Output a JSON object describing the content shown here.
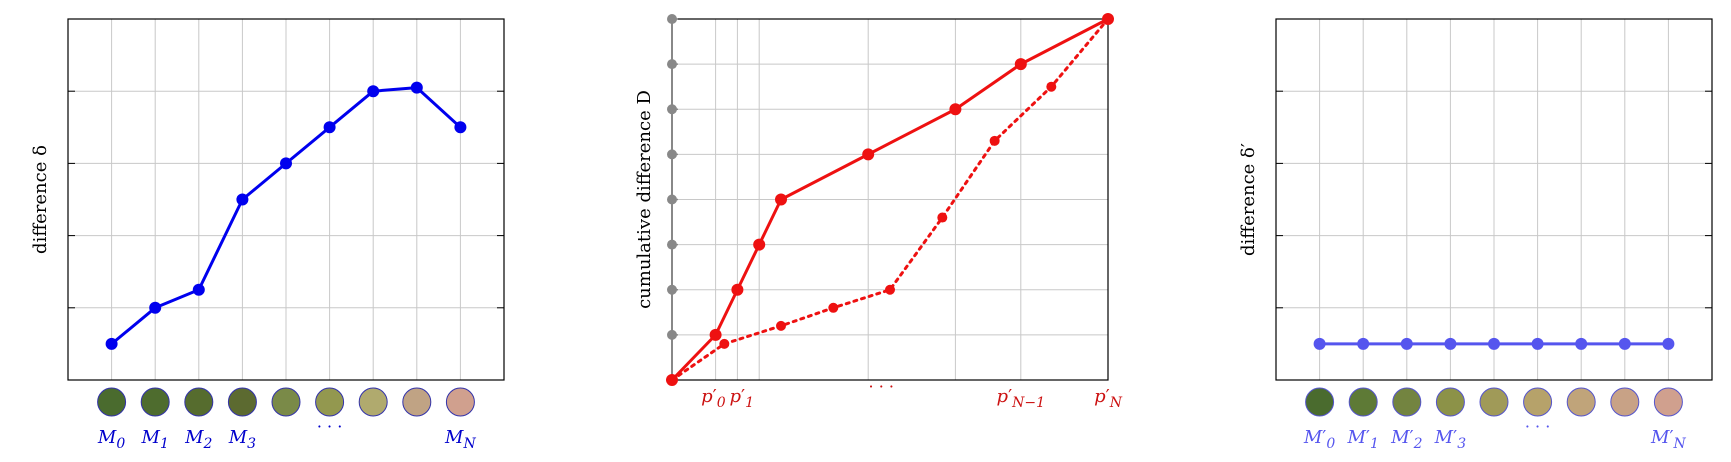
{
  "chart_data": [
    {
      "type": "line",
      "ylabel": "difference δ",
      "series": [
        {
          "name": "δ",
          "color": "#0000ee",
          "x": [
            0,
            1,
            2,
            3,
            4,
            5,
            6,
            7,
            8
          ],
          "values": [
            1.0,
            2.0,
            2.5,
            5.0,
            6.0,
            7.0,
            8.0,
            8.1,
            7.0
          ]
        }
      ],
      "xlim": [
        -1,
        9
      ],
      "ylim": [
        0,
        10
      ],
      "grid": true,
      "markers": {
        "colors": [
          "#4a6b2e",
          "#4e6c2e",
          "#566c2e",
          "#5c6a30",
          "#7a8a48",
          "#93984f",
          "#b0aa6e",
          "#c0a384",
          "#d0a08e"
        ],
        "labels": [
          {
            "base": "M",
            "sub": "0"
          },
          {
            "base": "M",
            "sub": "1"
          },
          {
            "base": "M",
            "sub": "2"
          },
          {
            "base": "M",
            "sub": "3"
          },
          {
            "base": "M",
            "sub": "N"
          }
        ],
        "ellipsis": "· · ·",
        "label_color": "#0000cc"
      }
    },
    {
      "type": "line",
      "ylabel": "cumulative difference D",
      "series": [
        {
          "name": "D (solid)",
          "style": "solid",
          "color": "#ee1111",
          "x": [
            0.0,
            1.0,
            1.5,
            2.0,
            2.5,
            4.5,
            6.5,
            8.0,
            10.0
          ],
          "values": [
            0,
            1,
            2,
            3,
            4,
            5,
            6,
            7,
            8
          ]
        },
        {
          "name": "D (dotted)",
          "style": "dotted",
          "color": "#ee1111",
          "x": [
            0.0,
            1.2,
            2.5,
            3.7,
            5.0,
            6.2,
            7.4,
            8.7,
            10.0
          ],
          "values": [
            0,
            0.8,
            1.2,
            1.6,
            2.0,
            3.6,
            5.3,
            6.5,
            8
          ]
        }
      ],
      "xlim": [
        0,
        10
      ],
      "ylim": [
        0,
        8
      ],
      "grid": true,
      "x_tick_labels": [
        {
          "base": "p",
          "sub": "0"
        },
        {
          "base": "p",
          "sub": "1"
        },
        {
          "base": "p",
          "sub": "N−1"
        },
        {
          "base": "p",
          "sub": "N"
        }
      ],
      "ellipsis": "· · ·",
      "axis_color": "#888888"
    },
    {
      "type": "line",
      "ylabel": "difference δ′",
      "series": [
        {
          "name": "δ′",
          "color": "#5555ee",
          "x": [
            0,
            1,
            2,
            3,
            4,
            5,
            6,
            7,
            8
          ],
          "values": [
            1,
            1,
            1,
            1,
            1,
            1,
            1,
            1,
            1
          ]
        }
      ],
      "xlim": [
        -1,
        9
      ],
      "ylim": [
        0,
        10
      ],
      "grid": true,
      "markers": {
        "colors": [
          "#4a6b2e",
          "#5e7a36",
          "#738440",
          "#8c9248",
          "#a09a58",
          "#b6a26a",
          "#c0a47a",
          "#c8a286",
          "#d0a08e"
        ],
        "labels": [
          {
            "base": "M",
            "sub": "0"
          },
          {
            "base": "M",
            "sub": "1"
          },
          {
            "base": "M",
            "sub": "2"
          },
          {
            "base": "M",
            "sub": "3"
          },
          {
            "base": "M",
            "sub": "N"
          }
        ],
        "ellipsis": "· · ·",
        "label_color": "#5555ee"
      }
    }
  ]
}
